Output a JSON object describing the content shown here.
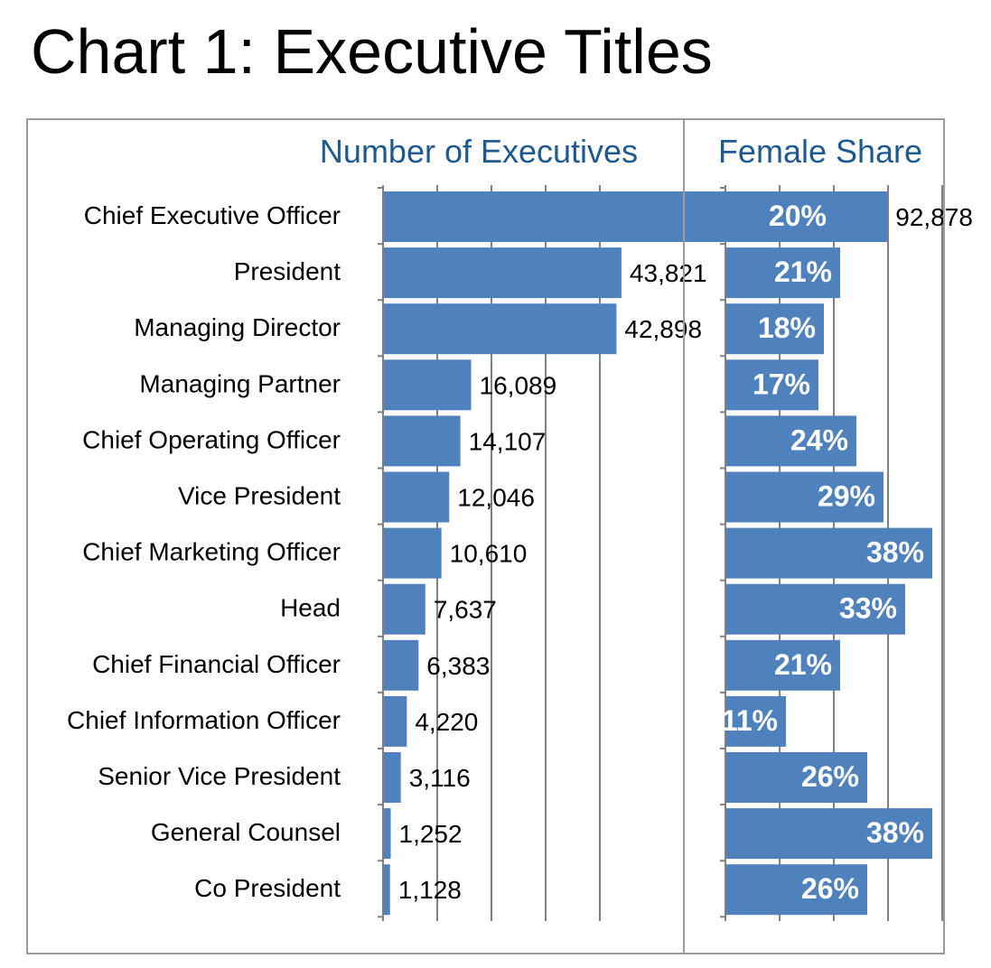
{
  "title": "Chart 1: Executive Titles",
  "colors": {
    "bar": "#4f81bd",
    "header": "#1f5a8f",
    "axis": "#808080",
    "frame": "#9a9a9a"
  },
  "chart_data": [
    {
      "type": "bar",
      "orientation": "horizontal",
      "title": "Number of Executives",
      "categories": [
        "Chief Executive Officer",
        "President",
        "Managing Director",
        "Managing Partner",
        "Chief Operating Officer",
        "Vice President",
        "Chief Marketing Officer",
        "Head",
        "Chief Financial Officer",
        "Chief Information Officer",
        "Senior Vice President",
        "General Counsel",
        "Co President"
      ],
      "values": [
        92878,
        43821,
        42898,
        16089,
        14107,
        12046,
        10610,
        7637,
        6383,
        4220,
        3116,
        1252,
        1128
      ],
      "labels": [
        "92,878",
        "43,821",
        "42,898",
        "16,089",
        "14,107",
        "12,046",
        "10,610",
        "7,637",
        "6,383",
        "4,220",
        "3,116",
        "1,252",
        "1,128"
      ],
      "xlim": [
        0,
        100000
      ],
      "grid": true
    },
    {
      "type": "bar",
      "orientation": "horizontal",
      "title": "Female Share",
      "categories": [
        "Chief Executive Officer",
        "President",
        "Managing Director",
        "Managing Partner",
        "Chief Operating Officer",
        "Vice President",
        "Chief Marketing Officer",
        "Head",
        "Chief Financial Officer",
        "Chief Information Officer",
        "Senior Vice President",
        "General Counsel",
        "Co President"
      ],
      "values": [
        20,
        21,
        18,
        17,
        24,
        29,
        38,
        33,
        21,
        11,
        26,
        38,
        26
      ],
      "labels": [
        "20%",
        "21%",
        "18%",
        "17%",
        "24%",
        "29%",
        "38%",
        "33%",
        "21%",
        "11%",
        "26%",
        "38%",
        "26%"
      ],
      "xlim": [
        0,
        40
      ],
      "grid": true
    }
  ]
}
